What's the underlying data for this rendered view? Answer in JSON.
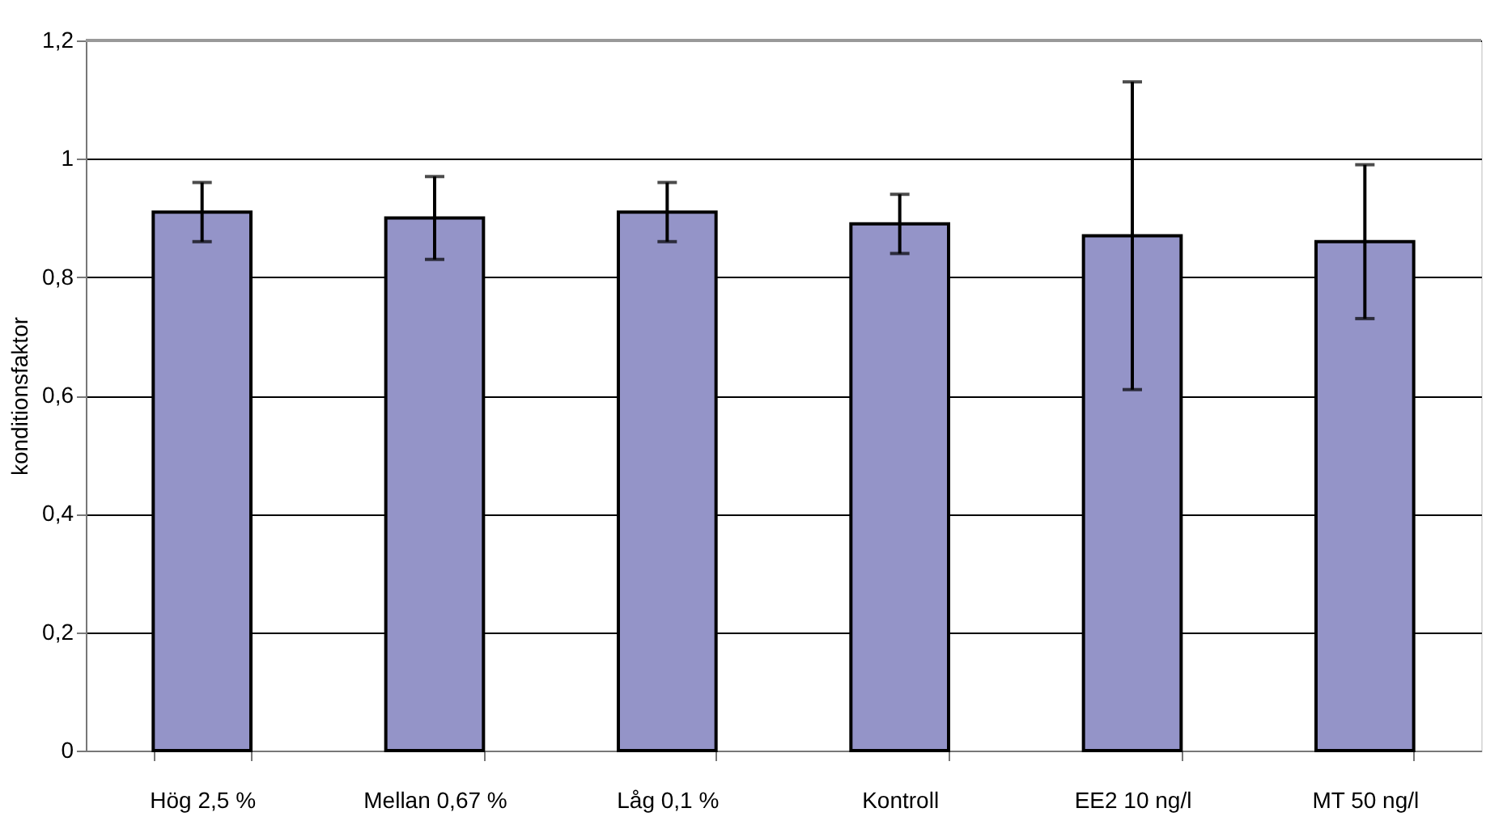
{
  "chart_data": {
    "type": "bar",
    "ylabel": "konditionsfaktor",
    "categories": [
      "Hög 2,5 %",
      "Mellan 0,67 %",
      "Låg 0,1 %",
      "Kontroll",
      "EE2 10 ng/l",
      "MT 50 ng/l"
    ],
    "values": [
      0.91,
      0.9,
      0.91,
      0.89,
      0.87,
      0.86
    ],
    "errors": [
      [
        0.86,
        0.96
      ],
      [
        0.83,
        0.97
      ],
      [
        0.86,
        0.96
      ],
      [
        0.84,
        0.94
      ],
      [
        0.61,
        1.13
      ],
      [
        0.73,
        0.99
      ]
    ],
    "color": "#9494c8",
    "ylim": [
      0,
      1.2
    ],
    "yticks": [
      0,
      {
        "value": 0.2,
        "label": "0,2"
      },
      {
        "value": 0.4,
        "label": "0,4"
      },
      {
        "value": 0.6,
        "label": "0,6"
      },
      {
        "value": 0.8,
        "label": "0,8"
      },
      1,
      {
        "value": 1.2,
        "label": "1,2"
      }
    ],
    "grid": "y"
  }
}
